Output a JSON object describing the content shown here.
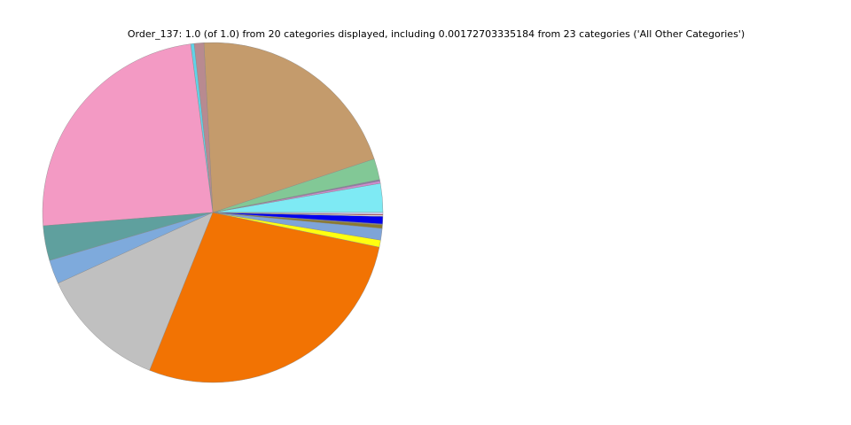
{
  "chart_data": {
    "type": "pie",
    "title": "Order_137: 1.0 (of 1.0) from 20 categories displayed, including 0.00172703335184 from 23 categories ('All Other Categories')",
    "values": [
      0.0275,
      0.0022,
      0.0014,
      0.02,
      0.2072,
      0.0092,
      0.0033,
      0.2417,
      0.0331,
      0.0228,
      0.1211,
      0.2778,
      0.0067,
      0.0111,
      0.0033,
      0.0008,
      0.0072,
      0.0011,
      0.0008,
      0.0017
    ],
    "colors": [
      "#7eeaf4",
      "#d08ad0",
      "#8c7aa8",
      "#82c896",
      "#c49b6c",
      "#b88a90",
      "#5fd3e8",
      "#f39ac4",
      "#5fa09e",
      "#7eaadc",
      "#c0c0c0",
      "#f27303",
      "#ffff10",
      "#7ea4d8",
      "#8a7a30",
      "#808080",
      "#0000ee",
      "#f0f0f0",
      "#e02020",
      "#d9d9ff"
    ]
  }
}
